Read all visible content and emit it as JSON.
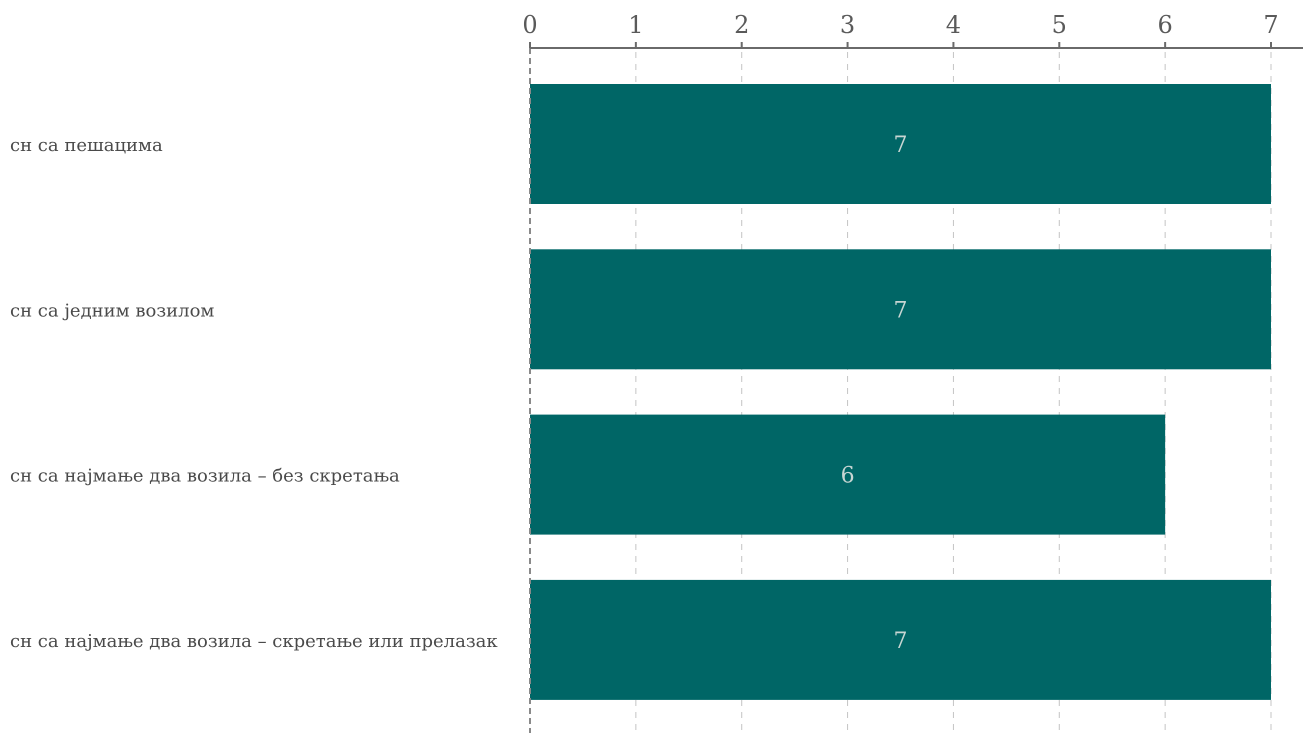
{
  "chart_data": {
    "type": "bar",
    "orientation": "horizontal",
    "categories": [
      "сн са пешацима",
      "сн са једним возилом",
      "сн са најмање два возила – без скретања",
      "сн са најмање два возила – скретање или прелазак"
    ],
    "values": [
      7,
      7,
      6,
      7
    ],
    "data_labels": [
      "7",
      "7",
      "6",
      "7"
    ],
    "xlim": [
      0,
      7
    ],
    "x_ticks": [
      0,
      1,
      2,
      3,
      4,
      5,
      6,
      7
    ],
    "x_tick_labels": [
      "0",
      "1",
      "2",
      "3",
      "4",
      "5",
      "6",
      "7"
    ],
    "x_axis_position": "top",
    "grid": true,
    "legend": "none",
    "title": "",
    "xlabel": "",
    "ylabel": "",
    "colors": {
      "bar": "#006666",
      "value_label": "#c8d6d3",
      "grid": "#c4c4c4",
      "axis": "#6a6a6a",
      "text": "#4a4a4a"
    }
  }
}
